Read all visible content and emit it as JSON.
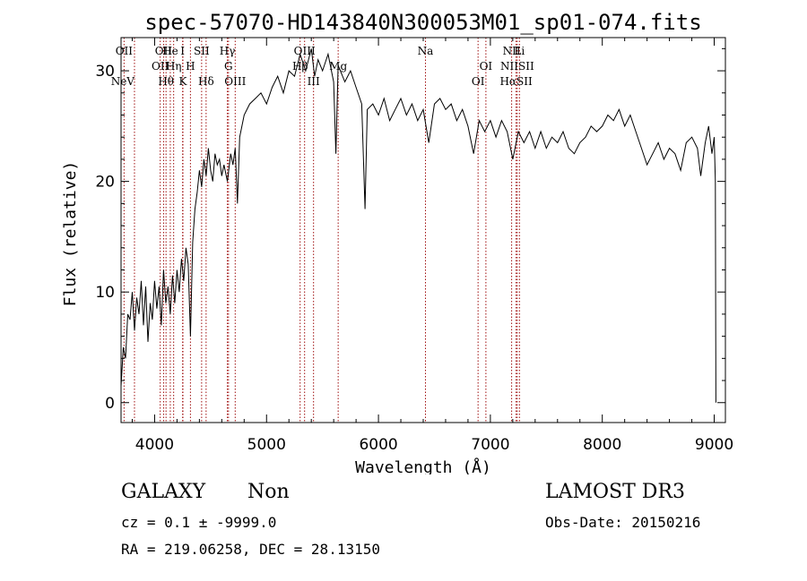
{
  "chart_data": {
    "type": "line",
    "title": "spec-57070-HD143840N300053M01_sp01-074.fits",
    "xlabel": "Wavelength (Å)",
    "ylabel": "Flux (relative)",
    "xlim": [
      3700,
      9100
    ],
    "ylim": [
      -1.8,
      33.0
    ],
    "x_ticks": [
      4000,
      5000,
      6000,
      7000,
      8000,
      9000
    ],
    "y_ticks": [
      0,
      10,
      20,
      30
    ],
    "grid": false,
    "series": [
      {
        "points": [
          [
            3700,
            1.5
          ],
          [
            3720,
            5.0
          ],
          [
            3740,
            4.0
          ],
          [
            3760,
            8.0
          ],
          [
            3780,
            7.5
          ],
          [
            3800,
            10.0
          ],
          [
            3820,
            6.5
          ],
          [
            3840,
            9.5
          ],
          [
            3860,
            8.0
          ],
          [
            3880,
            11.0
          ],
          [
            3900,
            7.0
          ],
          [
            3920,
            10.5
          ],
          [
            3940,
            5.5
          ],
          [
            3960,
            9.0
          ],
          [
            3980,
            7.5
          ],
          [
            4000,
            11.0
          ],
          [
            4020,
            8.5
          ],
          [
            4040,
            10.5
          ],
          [
            4060,
            7.0
          ],
          [
            4080,
            12.0
          ],
          [
            4100,
            9.0
          ],
          [
            4120,
            10.5
          ],
          [
            4140,
            8.0
          ],
          [
            4160,
            11.5
          ],
          [
            4180,
            9.0
          ],
          [
            4200,
            12.0
          ],
          [
            4220,
            10.0
          ],
          [
            4240,
            13.0
          ],
          [
            4260,
            11.0
          ],
          [
            4280,
            14.0
          ],
          [
            4300,
            12.5
          ],
          [
            4320,
            6.0
          ],
          [
            4340,
            14.5
          ],
          [
            4360,
            17.5
          ],
          [
            4380,
            19.0
          ],
          [
            4400,
            21.0
          ],
          [
            4420,
            19.5
          ],
          [
            4440,
            22.0
          ],
          [
            4460,
            20.5
          ],
          [
            4480,
            23.0
          ],
          [
            4500,
            21.0
          ],
          [
            4520,
            20.0
          ],
          [
            4540,
            22.5
          ],
          [
            4560,
            21.5
          ],
          [
            4580,
            22.0
          ],
          [
            4600,
            20.5
          ],
          [
            4620,
            21.5
          ],
          [
            4650,
            20.0
          ],
          [
            4680,
            22.5
          ],
          [
            4700,
            21.5
          ],
          [
            4720,
            23.0
          ],
          [
            4740,
            18.0
          ],
          [
            4760,
            24.0
          ],
          [
            4780,
            25.0
          ],
          [
            4800,
            26.0
          ],
          [
            4850,
            27.0
          ],
          [
            4900,
            27.5
          ],
          [
            4950,
            28.0
          ],
          [
            5000,
            27.0
          ],
          [
            5050,
            28.5
          ],
          [
            5100,
            29.5
          ],
          [
            5150,
            28.0
          ],
          [
            5200,
            30.0
          ],
          [
            5250,
            29.5
          ],
          [
            5300,
            31.5
          ],
          [
            5350,
            30.0
          ],
          [
            5400,
            32.0
          ],
          [
            5430,
            29.5
          ],
          [
            5460,
            31.0
          ],
          [
            5500,
            30.0
          ],
          [
            5550,
            31.5
          ],
          [
            5600,
            29.0
          ],
          [
            5620,
            22.5
          ],
          [
            5640,
            30.5
          ],
          [
            5700,
            29.0
          ],
          [
            5750,
            30.0
          ],
          [
            5800,
            28.5
          ],
          [
            5850,
            27.0
          ],
          [
            5880,
            17.5
          ],
          [
            5900,
            26.5
          ],
          [
            5950,
            27.0
          ],
          [
            6000,
            26.0
          ],
          [
            6050,
            27.5
          ],
          [
            6100,
            25.5
          ],
          [
            6150,
            26.5
          ],
          [
            6200,
            27.5
          ],
          [
            6250,
            26.0
          ],
          [
            6300,
            27.0
          ],
          [
            6350,
            25.5
          ],
          [
            6400,
            26.5
          ],
          [
            6450,
            23.5
          ],
          [
            6500,
            27.0
          ],
          [
            6550,
            27.5
          ],
          [
            6600,
            26.5
          ],
          [
            6650,
            27.0
          ],
          [
            6700,
            25.5
          ],
          [
            6750,
            26.5
          ],
          [
            6800,
            25.0
          ],
          [
            6850,
            22.5
          ],
          [
            6900,
            25.5
          ],
          [
            6950,
            24.5
          ],
          [
            7000,
            25.5
          ],
          [
            7050,
            24.0
          ],
          [
            7100,
            25.5
          ],
          [
            7150,
            24.5
          ],
          [
            7200,
            22.0
          ],
          [
            7250,
            24.5
          ],
          [
            7300,
            23.5
          ],
          [
            7350,
            24.5
          ],
          [
            7400,
            23.0
          ],
          [
            7450,
            24.5
          ],
          [
            7500,
            23.0
          ],
          [
            7550,
            24.0
          ],
          [
            7600,
            23.5
          ],
          [
            7650,
            24.5
          ],
          [
            7700,
            23.0
          ],
          [
            7750,
            22.5
          ],
          [
            7800,
            23.5
          ],
          [
            7850,
            24.0
          ],
          [
            7900,
            25.0
          ],
          [
            7950,
            24.5
          ],
          [
            8000,
            25.0
          ],
          [
            8050,
            26.0
          ],
          [
            8100,
            25.5
          ],
          [
            8150,
            26.5
          ],
          [
            8200,
            25.0
          ],
          [
            8250,
            26.0
          ],
          [
            8300,
            24.5
          ],
          [
            8350,
            23.0
          ],
          [
            8400,
            21.5
          ],
          [
            8450,
            22.5
          ],
          [
            8500,
            23.5
          ],
          [
            8550,
            22.0
          ],
          [
            8600,
            23.0
          ],
          [
            8650,
            22.5
          ],
          [
            8700,
            21.0
          ],
          [
            8750,
            23.5
          ],
          [
            8800,
            24.0
          ],
          [
            8850,
            23.0
          ],
          [
            8880,
            20.5
          ],
          [
            8920,
            23.5
          ],
          [
            8950,
            25.0
          ],
          [
            8980,
            22.5
          ],
          [
            9000,
            24.0
          ],
          [
            9010,
            20.0
          ],
          [
            9015,
            0.0
          ]
        ]
      }
    ],
    "lines": [
      {
        "wl": 3727,
        "label": "OII",
        "tier": 0
      },
      {
        "wl": 3820,
        "label": "NeV",
        "tier": 3
      },
      {
        "wl": 4050,
        "label": "OII",
        "tier": 1
      },
      {
        "wl": 4080,
        "label": "OII",
        "tier": 0
      },
      {
        "wl": 4102,
        "label": "Hθ",
        "tier": 2
      },
      {
        "wl": 4140,
        "label": "He",
        "tier": 0
      },
      {
        "wl": 4170,
        "label": "Hη",
        "tier": 1
      },
      {
        "wl": 4250,
        "label": "I",
        "tier": 0
      },
      {
        "wl": 4253,
        "label": "K",
        "tier": 2
      },
      {
        "wl": 4320,
        "label": "H",
        "tier": 1
      },
      {
        "wl": 4420,
        "label": "SII",
        "tier": 0
      },
      {
        "wl": 4460,
        "label": "Hδ",
        "tier": 2
      },
      {
        "wl": 4650,
        "label": "Hγ",
        "tier": 0
      },
      {
        "wl": 4660,
        "label": "G",
        "tier": 1
      },
      {
        "wl": 4720,
        "label": "OIII",
        "tier": 2
      },
      {
        "wl": 5340,
        "label": "OIII",
        "tier": 0
      },
      {
        "wl": 5300,
        "label": "Hβ",
        "tier": 1
      },
      {
        "wl": 5420,
        "label": "III",
        "tier": 2
      },
      {
        "wl": 5640,
        "label": "Mg",
        "tier": 1
      },
      {
        "wl": 6420,
        "label": "Na",
        "tier": 0
      },
      {
        "wl": 6960,
        "label": "OI",
        "tier": 1
      },
      {
        "wl": 6890,
        "label": "OI",
        "tier": 2
      },
      {
        "wl": 7190,
        "label": "NII",
        "tier": 0
      },
      {
        "wl": 7260,
        "label": "Li",
        "tier": 0
      },
      {
        "wl": 7240,
        "label": "NIISII",
        "tier": 1
      },
      {
        "wl": 7230,
        "label": "HαSII",
        "tier": 2
      }
    ]
  },
  "info": {
    "class": "GALAXY",
    "subclass": "Non",
    "survey": "LAMOST DR3",
    "cz": "cz = 0.1 ± -9999.0",
    "obs_date": "Obs-Date: 20150216",
    "radec": "RA = 219.06258, DEC =  28.13150"
  }
}
